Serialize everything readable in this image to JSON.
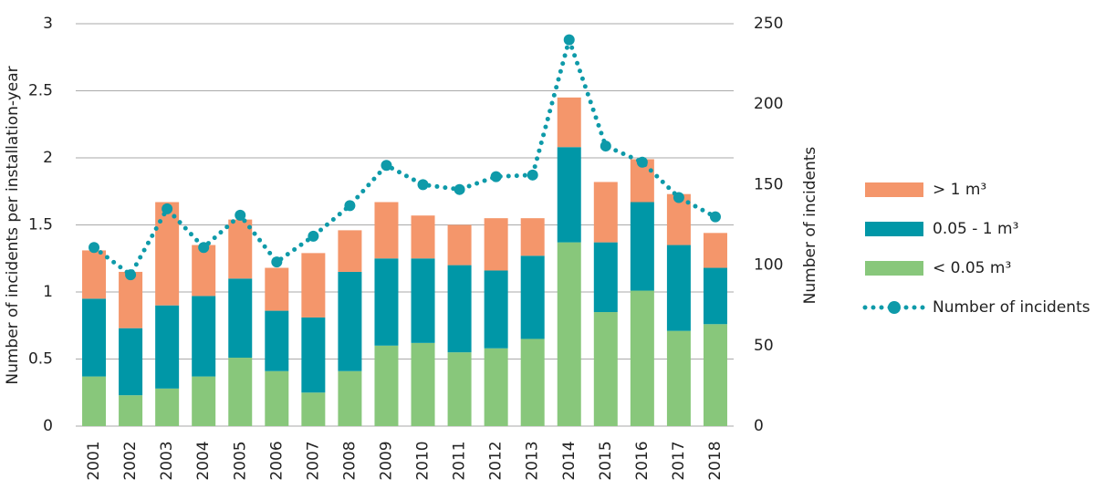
{
  "chart_data": {
    "type": "bar",
    "stacked": true,
    "y_label": "Number of incidents per installation-year",
    "y2_label": "Number of incidents",
    "categories": [
      "2001",
      "2002",
      "2003",
      "2004",
      "2005",
      "2006",
      "2007",
      "2008",
      "2009",
      "2010",
      "2011",
      "2012",
      "2013",
      "2014",
      "2015",
      "2016",
      "2017",
      "2018"
    ],
    "series": [
      {
        "name": "< 0.05 m³",
        "color": "#88c77b",
        "values": [
          0.37,
          0.23,
          0.28,
          0.37,
          0.51,
          0.41,
          0.25,
          0.41,
          0.6,
          0.62,
          0.55,
          0.58,
          0.65,
          1.37,
          0.85,
          1.01,
          0.71,
          0.76
        ]
      },
      {
        "name": "0.05 - 1 m³",
        "color": "#0097a7",
        "values": [
          0.58,
          0.5,
          0.62,
          0.6,
          0.59,
          0.45,
          0.56,
          0.74,
          0.65,
          0.63,
          0.65,
          0.58,
          0.62,
          0.71,
          0.52,
          0.66,
          0.64,
          0.42
        ]
      },
      {
        "name": "> 1 m³",
        "color": "#f4966b",
        "values": [
          0.36,
          0.42,
          0.77,
          0.38,
          0.44,
          0.32,
          0.48,
          0.31,
          0.42,
          0.32,
          0.3,
          0.39,
          0.28,
          0.37,
          0.45,
          0.32,
          0.38,
          0.26
        ]
      },
      {
        "name": "Number of incidents",
        "type": "line",
        "axis": "y2",
        "color": "#0e9aa9",
        "values": [
          111,
          94,
          135,
          111,
          131,
          102,
          118,
          137,
          162,
          150,
          147,
          155,
          156,
          240,
          174,
          164,
          142,
          130
        ]
      }
    ],
    "ylim": [
      0,
      3
    ],
    "yticks": [
      0,
      0.5,
      1,
      1.5,
      2,
      2.5,
      3
    ],
    "y2lim": [
      0,
      250
    ],
    "y2ticks": [
      0,
      50,
      100,
      150,
      200,
      250
    ],
    "grid": true,
    "legend": "right"
  }
}
